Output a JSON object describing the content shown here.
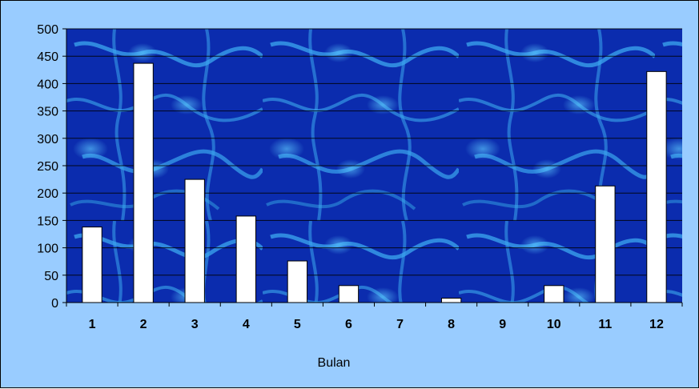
{
  "chart_data": {
    "type": "bar",
    "title": "",
    "xlabel": "Bulan",
    "ylabel": "",
    "categories": [
      "1",
      "2",
      "3",
      "4",
      "5",
      "6",
      "7",
      "8",
      "9",
      "10",
      "11",
      "12"
    ],
    "values": [
      138,
      437,
      225,
      158,
      76,
      31,
      0,
      8,
      0,
      31,
      213,
      422
    ],
    "ylim": [
      0,
      500
    ],
    "yticks": [
      0,
      50,
      100,
      150,
      200,
      250,
      300,
      350,
      400,
      450,
      500
    ],
    "grid": true,
    "legend": "none",
    "colors": {
      "frame_background": "#99ccff",
      "plot_background": "#0a2bb0",
      "plot_texture": "#3fa8ee",
      "bar_fill": "#ffffff",
      "bar_stroke": "#000000",
      "gridline": "#000000"
    }
  }
}
